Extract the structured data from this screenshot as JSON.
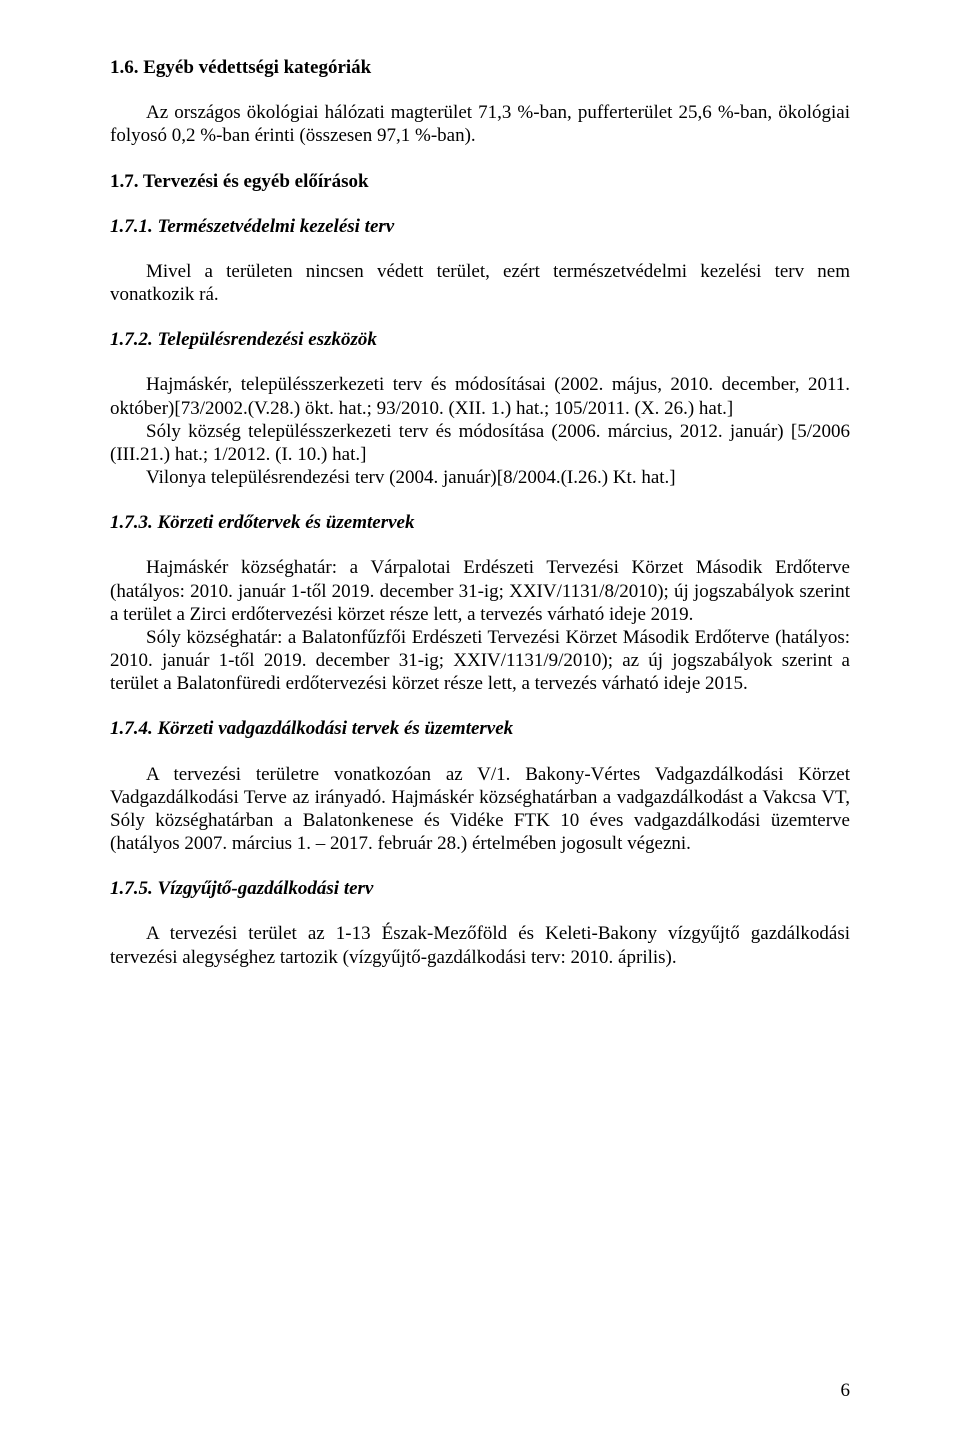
{
  "section16": {
    "title": "1.6. Egyéb védettségi kategóriák",
    "para": "Az országos ökológiai hálózati magterület 71,3 %-ban, pufferterület 25,6 %-ban, ökológiai folyosó 0,2 %-ban érinti (összesen 97,1 %-ban)."
  },
  "section17": {
    "title": "1.7. Tervezési és egyéb előírások"
  },
  "section171": {
    "title": "1.7.1. Természetvédelmi kezelési terv",
    "para": "Mivel a területen nincsen védett terület, ezért természetvédelmi kezelési terv nem vonatkozik rá."
  },
  "section172": {
    "title": "1.7.2. Településrendezési eszközök",
    "p1": "Hajmáskér, településszerkezeti terv és módosításai (2002. május, 2010. december, 2011. október)[73/2002.(V.28.) ökt. hat.; 93/2010. (XII. 1.) hat.; 105/2011. (X. 26.) hat.]",
    "p2": "Sóly község településszerkezeti terv és módosítása (2006. március, 2012. január) [5/2006 (III.21.) hat.; 1/2012. (I. 10.) hat.]",
    "p3": "Vilonya településrendezési terv (2004. január)[8/2004.(I.26.) Kt. hat.]"
  },
  "section173": {
    "title": "1.7.3. Körzeti erdőtervek és üzemtervek",
    "p1": "Hajmáskér községhatár: a Várpalotai Erdészeti Tervezési Körzet Második Erdőterve (hatályos: 2010. január 1-től 2019. december 31-ig; XXIV/1131/8/2010); új jogszabályok szerint a terület a Zirci erdőtervezési körzet része lett, a tervezés várható ideje 2019.",
    "p2": "Sóly községhatár: a Balatonfűzfői Erdészeti Tervezési Körzet Második Erdőterve (hatályos: 2010. január 1-től 2019. december 31-ig; XXIV/1131/9/2010); az új jogszabályok szerint a terület a Balatonfüredi erdőtervezési körzet része lett, a tervezés várható ideje 2015."
  },
  "section174": {
    "title": "1.7.4. Körzeti vadgazdálkodási tervek és üzemtervek",
    "para": "A tervezési területre vonatkozóan az V/1. Bakony-Vértes Vadgazdálkodási Körzet Vadgazdálkodási Terve az irányadó. Hajmáskér községhatárban a vadgazdálkodást a Vakcsa VT, Sóly községhatárban a Balatonkenese és Vidéke FTK 10 éves vadgazdálkodási üzemterve (hatályos 2007. március 1. – 2017. február 28.) értelmében jogosult végezni."
  },
  "section175": {
    "title": "1.7.5. Vízgyűjtő-gazdálkodási terv",
    "para": "A tervezési terület az 1-13 Észak-Mezőföld és Keleti-Bakony vízgyűjtő gazdálkodási tervezési alegységhez tartozik (vízgyűjtő-gazdálkodási terv: 2010. április)."
  },
  "pagenum": "6"
}
